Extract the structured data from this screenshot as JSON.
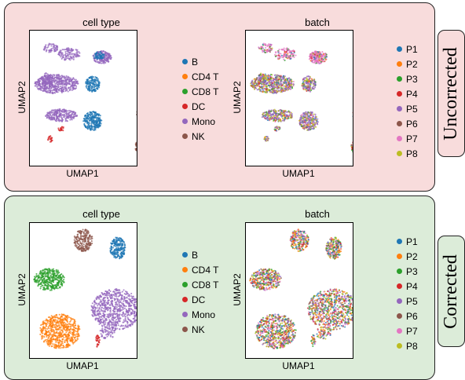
{
  "colors": {
    "B": "#1f77b4",
    "CD4 T": "#ff7f0e",
    "CD8 T": "#2ca02c",
    "DC": "#d62728",
    "Mono": "#9467bd",
    "NK": "#8c564b",
    "P1": "#1f77b4",
    "P2": "#ff7f0e",
    "P3": "#2ca02c",
    "P4": "#d62728",
    "P5": "#9467bd",
    "P6": "#8c564b",
    "P7": "#e377c2",
    "P8": "#bcbd22"
  },
  "rows": [
    {
      "label": "Uncorrected",
      "plots": [
        {
          "title": "cell type",
          "xlabel": "UMAP1",
          "ylabel": "UMAP2",
          "legend": [
            "B",
            "CD4 T",
            "CD8 T",
            "DC",
            "Mono",
            "NK"
          ]
        },
        {
          "title": "batch",
          "xlabel": "UMAP1",
          "ylabel": "UMAP2",
          "legend": [
            "P1",
            "P2",
            "P3",
            "P4",
            "P5",
            "P6",
            "P7",
            "P8"
          ]
        }
      ]
    },
    {
      "label": "Corrected",
      "plots": [
        {
          "title": "cell type",
          "xlabel": "UMAP1",
          "ylabel": "UMAP2",
          "legend": [
            "B",
            "CD4 T",
            "CD8 T",
            "DC",
            "Mono",
            "NK"
          ]
        },
        {
          "title": "batch",
          "xlabel": "UMAP1",
          "ylabel": "UMAP2",
          "legend": [
            "P1",
            "P2",
            "P3",
            "P4",
            "P5",
            "P6",
            "P7",
            "P8"
          ]
        }
      ]
    }
  ]
}
